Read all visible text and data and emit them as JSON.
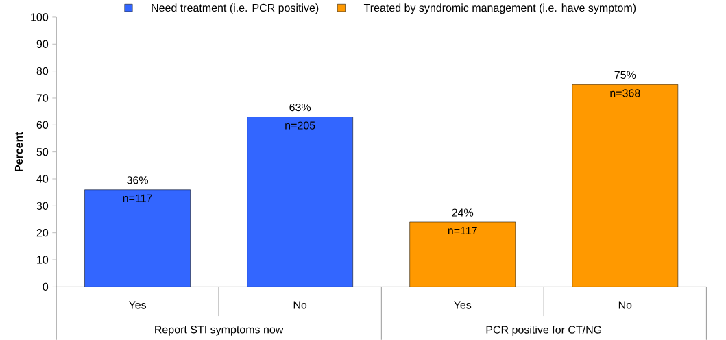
{
  "chart_data": {
    "type": "bar",
    "ylabel": "Percent",
    "categories": [
      "Yes",
      "No",
      "Yes",
      "No"
    ],
    "series": [
      {
        "name": "Need treatment (i.e. PCR positive)",
        "color": "#3366ff",
        "values": [
          36,
          63,
          null,
          null
        ],
        "value_labels": [
          "36%",
          "63%",
          null,
          null
        ]
      },
      {
        "name": "Treated by syndromic management (i.e. have symptom)",
        "color": "#ff9900",
        "values": [
          null,
          null,
          24,
          75
        ],
        "value_labels": [
          null,
          null,
          "24%",
          "75%"
        ]
      }
    ],
    "ylim": [
      0,
      100
    ],
    "yticks": [
      0,
      10,
      20,
      30,
      40,
      50,
      60,
      70,
      80,
      90,
      100
    ],
    "legend": "top",
    "grid": false,
    "annotations": [
      "Report STI symptoms now",
      "PCR positive for CT/NG",
      "n=117",
      "n=205",
      "n=117",
      "n=368"
    ]
  }
}
